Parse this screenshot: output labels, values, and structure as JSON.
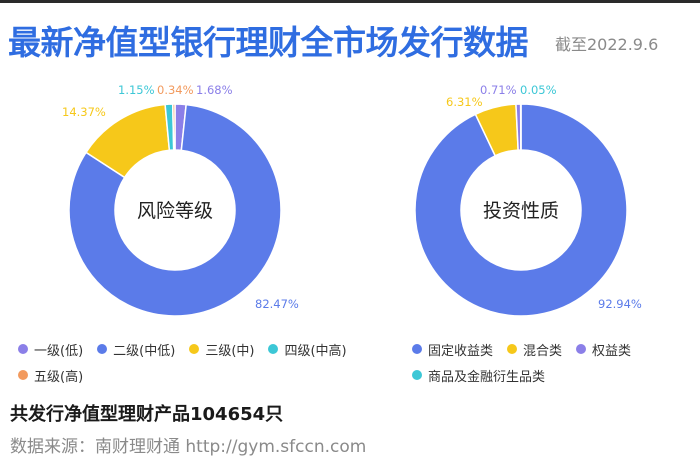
{
  "header": {
    "title": "最新净值型银行理财全市场发行数据",
    "date": "截至2022.9.6"
  },
  "chart_data": [
    {
      "type": "pie",
      "title": "风险等级",
      "series": [
        {
          "name": "一级(低)",
          "value": 1.68,
          "label": "1.68%",
          "color": "#8b7fe8"
        },
        {
          "name": "二级(中低)",
          "value": 82.47,
          "label": "82.47%",
          "color": "#5b7be9"
        },
        {
          "name": "三级(中)",
          "value": 14.37,
          "label": "14.37%",
          "color": "#f6c81a"
        },
        {
          "name": "四级(中高)",
          "value": 1.15,
          "label": "1.15%",
          "color": "#3cc7d6"
        },
        {
          "name": "五级(高)",
          "value": 0.34,
          "label": "0.34%",
          "color": "#f29a5e"
        }
      ],
      "legend_placement": "bottom"
    },
    {
      "type": "pie",
      "title": "投资性质",
      "series": [
        {
          "name": "固定收益类",
          "value": 92.94,
          "label": "92.94%",
          "color": "#5b7be9"
        },
        {
          "name": "混合类",
          "value": 6.31,
          "label": "6.31%",
          "color": "#f6c81a"
        },
        {
          "name": "权益类",
          "value": 0.71,
          "label": "0.71%",
          "color": "#8b7fe8"
        },
        {
          "name": "商品及金融衍生品类",
          "value": 0.05,
          "label": "0.05%",
          "color": "#3cc7d6"
        }
      ],
      "legend_placement": "bottom"
    }
  ],
  "footer": {
    "summary": "共发行净值型理财产品104654只",
    "source": "数据来源：南财理财通 http://gym.sfccn.com"
  }
}
